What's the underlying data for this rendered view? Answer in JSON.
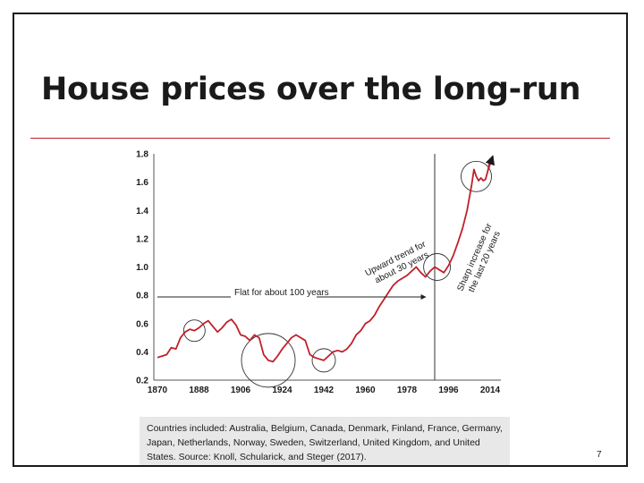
{
  "slide": {
    "title": "House prices over the long-run",
    "caption": "Countries included: Australia, Belgium, Canada, Denmark, Finland, France, Germany, Japan, Netherlands, Norway, Sweden, Switzerland, United Kingdom, and United States. Source: Knoll, Schularick, and Steger (2017).",
    "page_number": "7",
    "accent_color": "#c0202a"
  },
  "chart_data": {
    "type": "line",
    "title": "",
    "xlabel": "",
    "ylabel": "",
    "xlim": [
      1870,
      2014
    ],
    "ylim": [
      0.2,
      1.8
    ],
    "x_ticks": [
      "1870",
      "1888",
      "1906",
      "1924",
      "1942",
      "1960",
      "1978",
      "1996",
      "2014"
    ],
    "y_ticks": [
      "1.8",
      "1.6",
      "1.4",
      "1.2",
      "1.0",
      "0.8",
      "0.6",
      "0.4",
      "0.2"
    ],
    "line_color": "#c0202a",
    "series": [
      {
        "name": "House prices",
        "x": [
          1870,
          1872,
          1874,
          1876,
          1878,
          1880,
          1882,
          1884,
          1886,
          1888,
          1890,
          1892,
          1894,
          1896,
          1898,
          1900,
          1902,
          1904,
          1906,
          1908,
          1910,
          1912,
          1914,
          1916,
          1918,
          1920,
          1922,
          1924,
          1926,
          1928,
          1930,
          1932,
          1934,
          1936,
          1938,
          1940,
          1942,
          1944,
          1946,
          1948,
          1950,
          1952,
          1954,
          1956,
          1958,
          1960,
          1962,
          1964,
          1966,
          1968,
          1970,
          1972,
          1974,
          1976,
          1978,
          1980,
          1982,
          1984,
          1986,
          1988,
          1990,
          1992,
          1994,
          1996,
          1998,
          2000,
          2002,
          2004,
          2006,
          2007,
          2008,
          2009,
          2010,
          2011,
          2012,
          2013,
          2014
        ],
        "values": [
          0.36,
          0.37,
          0.38,
          0.43,
          0.42,
          0.5,
          0.54,
          0.56,
          0.55,
          0.57,
          0.6,
          0.62,
          0.58,
          0.54,
          0.57,
          0.61,
          0.63,
          0.59,
          0.52,
          0.51,
          0.48,
          0.52,
          0.5,
          0.38,
          0.34,
          0.33,
          0.37,
          0.42,
          0.46,
          0.5,
          0.52,
          0.5,
          0.48,
          0.38,
          0.36,
          0.35,
          0.34,
          0.37,
          0.4,
          0.41,
          0.4,
          0.42,
          0.46,
          0.52,
          0.55,
          0.6,
          0.62,
          0.66,
          0.72,
          0.77,
          0.82,
          0.87,
          0.9,
          0.92,
          0.94,
          0.97,
          1.0,
          0.96,
          0.93,
          0.97,
          1.0,
          0.98,
          0.96,
          1.01,
          1.08,
          1.17,
          1.27,
          1.4,
          1.58,
          1.69,
          1.64,
          1.61,
          1.63,
          1.61,
          1.62,
          1.68,
          1.76
        ]
      }
    ],
    "annotations": {
      "flat": "Flat for about 100 years",
      "upward_line1": "Upward trend for",
      "upward_line2": "about 30 years",
      "sharp_line1": "Sharp increase for",
      "sharp_line2": "the last 20 years"
    },
    "vertical_marker_x": 1990,
    "circled_years": [
      1886,
      1918,
      1942,
      1991,
      2008
    ]
  }
}
